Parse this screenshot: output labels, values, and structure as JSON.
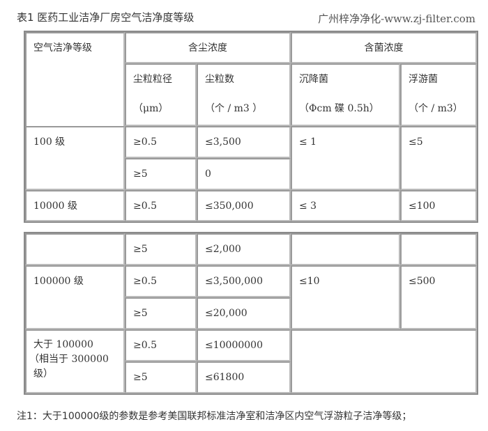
{
  "title": "表1 医药工业洁净厂房空气洁净度等级",
  "watermark": "广州梓净净化-www.zj-filter.com",
  "header": {
    "grade": "空气洁净等级",
    "dust": "含尘浓度",
    "bacteria": "含菌浓度",
    "size": "尘粒粒径",
    "size_unit": "（μm）",
    "count": "尘粒数",
    "count_unit": "（个 / m3 ）",
    "settling": "沉降菌",
    "settling_unit": "（Φcm 碟 0.5h）",
    "floating": "浮游菌",
    "floating_unit": "（个 / m3）"
  },
  "rows": [
    {
      "grade": "100 级",
      "s1": "≥0.5",
      "n1": "≤3,500",
      "s2": "≥5",
      "n2": "0",
      "settling": "≤ 1",
      "floating": "≤5"
    },
    {
      "grade": "10000 级",
      "s1": "≥0.5",
      "n1": "≤350,000",
      "settling": "≤ 3",
      "floating": "≤100"
    },
    {
      "s1": "≥5",
      "n1": "≤2,000"
    },
    {
      "grade": "100000 级",
      "s1": "≥0.5",
      "n1": "≤3,500,000",
      "s2": "≥5",
      "n2": "≤20,000",
      "settling": "≤10",
      "floating": "≤500"
    },
    {
      "grade_l1": "大于 100000",
      "grade_l2": "（相当于 300000",
      "grade_l3": "级）",
      "s1": "≥0.5",
      "n1": "≤10000000",
      "s2": "≥5",
      "n2": "≤61800"
    }
  ],
  "note": "注1：大于100000级的参数是参考美国联邦标准洁净室和洁净区内空气浮游粒子洁净等级；"
}
